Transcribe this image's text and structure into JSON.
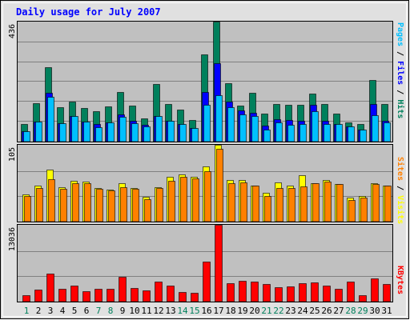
{
  "colors": {
    "frame_bg": "#e0e0e0",
    "plot_bg": "#c0c0c0",
    "title": "#0000ff",
    "hits": "#00805c",
    "files": "#0000ff",
    "pages": "#00c0ff",
    "visits": "#ffff00",
    "sites": "#ff8000",
    "kbytes": "#ff0000",
    "weekday_label": "#000000",
    "weekend_label": "#00805c",
    "bar_outline": "#000000"
  },
  "chart_data": [
    {
      "type": "bar",
      "title": "Daily usage for July 2007",
      "ylabel_parts": [
        {
          "text": "Pages",
          "color_key": "pages"
        },
        {
          "text": " / ",
          "color_key": "bar_outline"
        },
        {
          "text": "Files",
          "color_key": "files"
        },
        {
          "text": " / ",
          "color_key": "bar_outline"
        },
        {
          "text": "Hits",
          "color_key": "hits"
        }
      ],
      "ymax_label": "436",
      "ylim": [
        0,
        436
      ],
      "x": [
        1,
        2,
        3,
        4,
        5,
        6,
        7,
        8,
        9,
        10,
        11,
        12,
        13,
        14,
        15,
        16,
        17,
        18,
        19,
        20,
        21,
        22,
        23,
        24,
        25,
        26,
        27,
        28,
        29,
        30,
        31
      ],
      "series": [
        {
          "name": "Hits",
          "color_key": "hits",
          "values": [
            63,
            139,
            270,
            124,
            146,
            122,
            111,
            129,
            179,
            132,
            85,
            210,
            138,
            115,
            79,
            316,
            436,
            211,
            132,
            176,
            102,
            137,
            135,
            135,
            173,
            138,
            103,
            70,
            63,
            224,
            136
          ]
        },
        {
          "name": "Files",
          "color_key": "files",
          "values": [
            39,
            74,
            176,
            66,
            93,
            74,
            65,
            70,
            100,
            76,
            62,
            94,
            75,
            64,
            48,
            179,
            284,
            145,
            114,
            104,
            57,
            82,
            78,
            77,
            135,
            75,
            64,
            54,
            45,
            136,
            77
          ]
        },
        {
          "name": "Pages",
          "color_key": "pages",
          "values": [
            39,
            74,
            163,
            66,
            93,
            74,
            53,
            70,
            90,
            66,
            55,
            94,
            75,
            64,
            48,
            135,
            168,
            125,
            99,
            94,
            44,
            70,
            61,
            64,
            111,
            65,
            64,
            54,
            45,
            97,
            70
          ]
        }
      ]
    },
    {
      "type": "bar",
      "ylabel_parts": [
        {
          "text": "Sites",
          "color_key": "sites"
        },
        {
          "text": " / ",
          "color_key": "bar_outline"
        },
        {
          "text": "Visits",
          "color_key": "visits"
        }
      ],
      "ymax_label": "105",
      "ylim": [
        0,
        105
      ],
      "x": [
        1,
        2,
        3,
        4,
        5,
        6,
        7,
        8,
        9,
        10,
        11,
        12,
        13,
        14,
        15,
        16,
        17,
        18,
        19,
        20,
        21,
        22,
        23,
        24,
        25,
        26,
        27,
        28,
        29,
        30,
        31
      ],
      "series": [
        {
          "name": "Visits",
          "color_key": "visits",
          "values": [
            37,
            49,
            71,
            47,
            56,
            55,
            46,
            44,
            53,
            46,
            34,
            47,
            61,
            65,
            61,
            75,
            105,
            57,
            57,
            49,
            39,
            54,
            49,
            63,
            53,
            57,
            51,
            33,
            35,
            53,
            49
          ]
        },
        {
          "name": "Sites",
          "color_key": "sites",
          "values": [
            35,
            46,
            58,
            45,
            52,
            53,
            45,
            43,
            47,
            45,
            31,
            46,
            56,
            61,
            59,
            69,
            100,
            53,
            54,
            49,
            35,
            46,
            46,
            48,
            52,
            55,
            51,
            30,
            33,
            51,
            49
          ]
        }
      ]
    },
    {
      "type": "bar",
      "ylabel_parts": [
        {
          "text": "KBytes",
          "color_key": "kbytes"
        }
      ],
      "ymax_label": "13036",
      "ylim": [
        0,
        13036
      ],
      "x": [
        1,
        2,
        3,
        4,
        5,
        6,
        7,
        8,
        9,
        10,
        11,
        12,
        13,
        14,
        15,
        16,
        17,
        18,
        19,
        20,
        21,
        22,
        23,
        24,
        25,
        26,
        27,
        28,
        29,
        30,
        31
      ],
      "series": [
        {
          "name": "KBytes",
          "color_key": "kbytes",
          "values": [
            1086,
            2046,
            4800,
            2133,
            2685,
            1803,
            2146,
            2133,
            4269,
            2304,
            1916,
            3377,
            2776,
            1603,
            1539,
            6807,
            13036,
            3144,
            3552,
            3451,
            2999,
            2473,
            2643,
            3088,
            3321,
            2776,
            2209,
            3430,
            1066,
            3964,
            3003
          ]
        }
      ]
    }
  ],
  "x_axis": {
    "labels": [
      "1",
      "2",
      "3",
      "4",
      "5",
      "6",
      "7",
      "8",
      "9",
      "10",
      "11",
      "12",
      "13",
      "14",
      "15",
      "16",
      "17",
      "18",
      "19",
      "20",
      "21",
      "22",
      "23",
      "24",
      "25",
      "26",
      "27",
      "28",
      "29",
      "30",
      "31"
    ],
    "weekend_days": [
      1,
      7,
      8,
      14,
      15,
      21,
      22,
      28,
      29
    ]
  }
}
